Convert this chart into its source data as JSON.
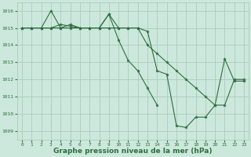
{
  "background_color": "#cce8dc",
  "grid_color": "#aaccbb",
  "line_color": "#2d6e3e",
  "marker_color": "#2d6e3e",
  "xlabel": "Graphe pression niveau de la mer (hPa)",
  "xlabel_fontsize": 6.5,
  "ylim": [
    1008.5,
    1016.5
  ],
  "xlim": [
    -0.5,
    23.5
  ],
  "yticks": [
    1009,
    1010,
    1011,
    1012,
    1013,
    1014,
    1015,
    1016
  ],
  "xticks": [
    0,
    1,
    2,
    3,
    4,
    5,
    6,
    7,
    8,
    9,
    10,
    11,
    12,
    13,
    14,
    15,
    16,
    17,
    18,
    19,
    20,
    21,
    22,
    23
  ],
  "series1_x": [
    0,
    1,
    2,
    3,
    4,
    5,
    6,
    7,
    8,
    9,
    10,
    11,
    12,
    13,
    14
  ],
  "series1_y": [
    1015.0,
    1015.0,
    1015.0,
    1016.0,
    1015.0,
    1015.2,
    1015.0,
    1015.0,
    1015.0,
    1015.8,
    1014.3,
    1013.1,
    1012.5,
    1011.5,
    1010.5
  ],
  "series2_x": [
    0,
    1,
    2,
    3,
    4,
    5,
    6,
    7,
    8,
    9,
    10,
    11,
    12,
    13,
    14,
    15,
    16,
    17,
    18,
    19,
    20,
    21,
    22,
    23
  ],
  "series2_y": [
    1015.0,
    1015.0,
    1015.0,
    1015.0,
    1015.2,
    1015.1,
    1015.0,
    1015.0,
    1015.0,
    1015.8,
    1015.0,
    1015.0,
    1015.0,
    1014.8,
    1012.5,
    1012.3,
    1009.3,
    1009.2,
    1009.8,
    1009.8,
    1010.5,
    1013.2,
    1011.9,
    1011.9
  ],
  "series3_x": [
    0,
    1,
    2,
    3,
    4,
    5,
    6,
    7,
    8,
    9,
    10,
    11,
    12,
    13,
    14,
    15,
    16,
    17,
    18,
    19,
    20,
    21,
    22,
    23
  ],
  "series3_y": [
    1015.0,
    1015.0,
    1015.0,
    1015.0,
    1015.0,
    1015.0,
    1015.0,
    1015.0,
    1015.0,
    1015.0,
    1015.0,
    1015.0,
    1015.0,
    1014.0,
    1013.5,
    1013.0,
    1012.5,
    1012.0,
    1011.5,
    1011.0,
    1010.5,
    1010.5,
    1012.0,
    1012.0
  ]
}
